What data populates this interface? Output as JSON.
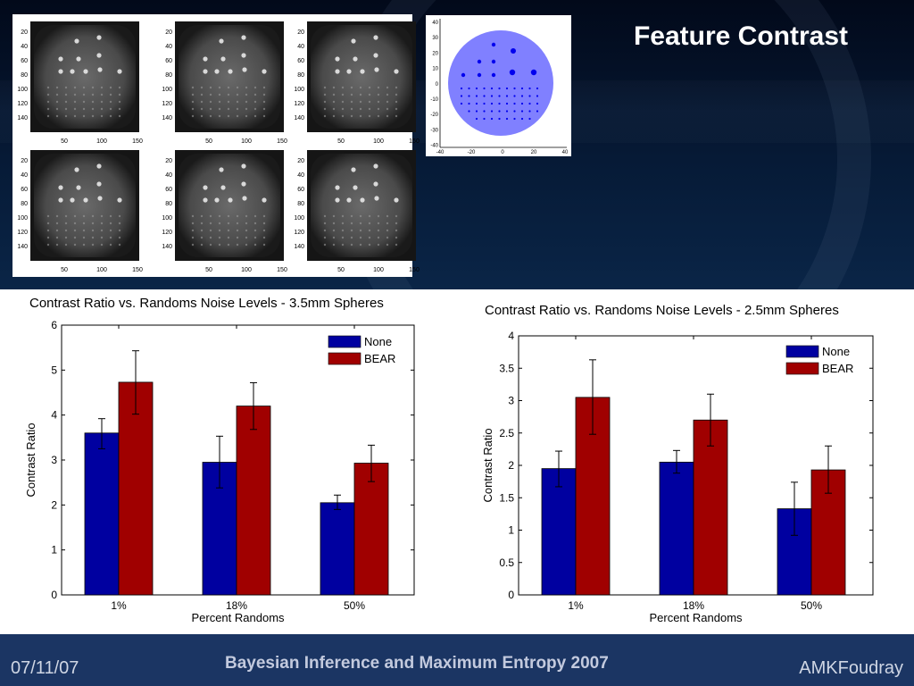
{
  "title": "Feature Contrast",
  "footer": {
    "date": "07/11/07",
    "conference": "Bayesian Inference and Maximum Entropy 2007",
    "author": "AMKFoudray"
  },
  "pet_images": {
    "y_ticks": [
      "20",
      "40",
      "60",
      "80",
      "100",
      "120",
      "140"
    ],
    "x_ticks": [
      "50",
      "100",
      "150"
    ]
  },
  "phantom": {
    "y_ticks": [
      "40",
      "30",
      "20",
      "10",
      "0",
      "-10",
      "-20",
      "-30",
      "-40"
    ],
    "x_ticks": [
      "-40",
      "-20",
      "0",
      "20",
      "40"
    ],
    "disk_color": "#8080ff",
    "dot_color": "#0000ee"
  },
  "chart_data": [
    {
      "type": "bar",
      "title": "Contrast Ratio vs. Randoms Noise Levels - 3.5mm Spheres",
      "xlabel": "Percent Randoms",
      "ylabel": "Contrast Ratio",
      "categories": [
        "1%",
        "18%",
        "50%"
      ],
      "ylim": [
        0,
        6
      ],
      "yticks": [
        "0",
        "1",
        "2",
        "3",
        "4",
        "5",
        "6"
      ],
      "legend": "top-right",
      "series": [
        {
          "name": "None",
          "values": [
            3.6,
            2.95,
            2.05
          ],
          "err_low": [
            3.25,
            2.38,
            1.9
          ],
          "err_high": [
            3.92,
            3.53,
            2.22
          ],
          "color": "#0000a0"
        },
        {
          "name": "BEAR",
          "values": [
            4.73,
            4.2,
            2.93
          ],
          "err_low": [
            4.02,
            3.68,
            2.52
          ],
          "err_high": [
            5.43,
            4.72,
            3.33
          ],
          "color": "#a00000"
        }
      ]
    },
    {
      "type": "bar",
      "title": "Contrast Ratio vs. Randoms Noise Levels - 2.5mm Spheres",
      "xlabel": "Percent Randoms",
      "ylabel": "Contrast Ratio",
      "categories": [
        "1%",
        "18%",
        "50%"
      ],
      "ylim": [
        0,
        4
      ],
      "yticks": [
        "0",
        "0.5",
        "1",
        "1.5",
        "2",
        "2.5",
        "3",
        "3.5",
        "4"
      ],
      "legend": "top-right",
      "series": [
        {
          "name": "None",
          "values": [
            1.95,
            2.05,
            1.33
          ],
          "err_low": [
            1.67,
            1.88,
            0.92
          ],
          "err_high": [
            2.22,
            2.23,
            1.74
          ],
          "color": "#0000a0"
        },
        {
          "name": "BEAR",
          "values": [
            3.05,
            2.7,
            1.93
          ],
          "err_low": [
            2.48,
            2.3,
            1.57
          ],
          "err_high": [
            3.63,
            3.1,
            2.3
          ],
          "color": "#a00000"
        }
      ]
    }
  ]
}
